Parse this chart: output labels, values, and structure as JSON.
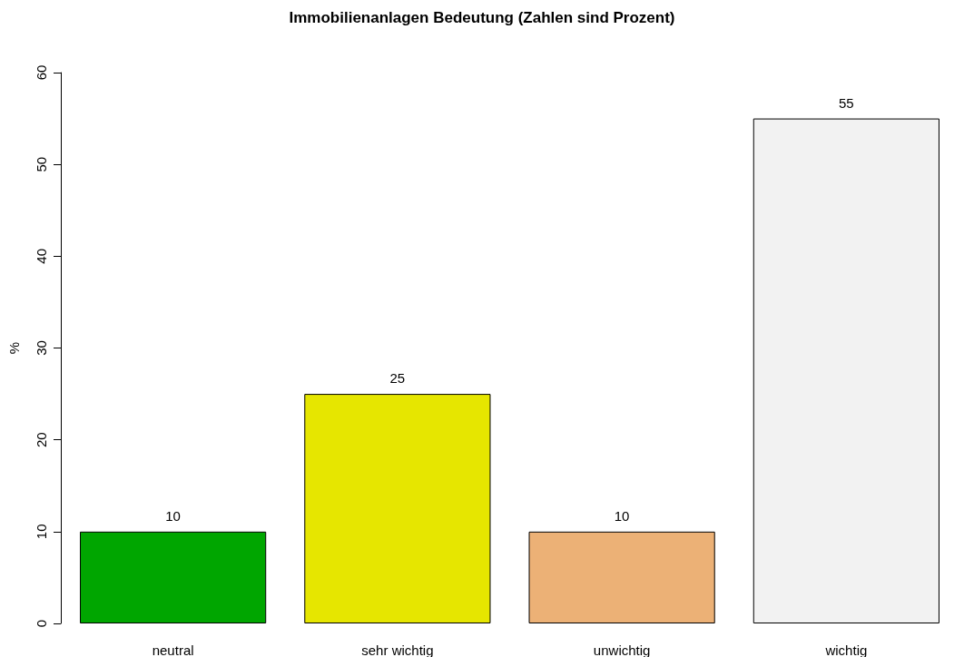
{
  "chart_data": {
    "type": "bar",
    "title": "Immobilienanlagen Bedeutung (Zahlen sind Prozent)",
    "ylabel": "%",
    "categories": [
      "neutral",
      "sehr wichtig",
      "unwichtig",
      "wichtig"
    ],
    "values": [
      10,
      25,
      10,
      55
    ],
    "colors": [
      "#00a600",
      "#e6e600",
      "#ecb176",
      "#f2f2f2"
    ],
    "ylim": [
      0,
      60
    ],
    "yticks": [
      0,
      10,
      20,
      30,
      40,
      50,
      60
    ],
    "grid": false,
    "data_labels": true
  }
}
